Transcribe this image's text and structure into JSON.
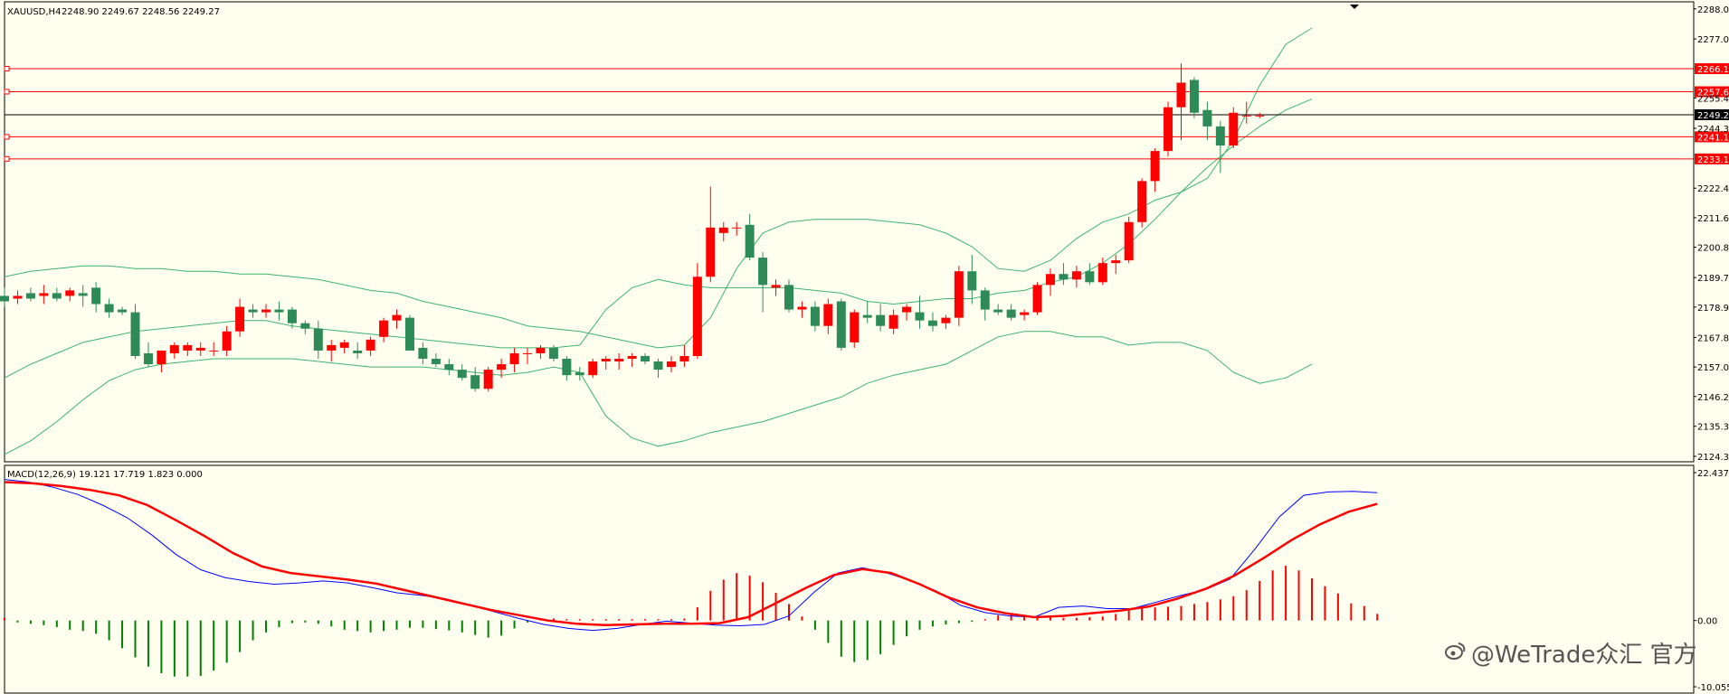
{
  "header": {
    "symbol": "XAUUSD,H4",
    "ohlc": "2248.90 2249.67 2248.56 2249.27"
  },
  "macd": {
    "label": "MACD(12,26,9) 19.121 17.719 1.823 0.000",
    "axis_ticks": [
      22.437,
      0.0,
      -10.055
    ]
  },
  "watermark": "@WeTrade众汇 官方",
  "colors": {
    "background": "#fffff0",
    "bull": "#2e8b57",
    "bear": "#ff0000",
    "bands": "#3cb371",
    "macd_line": "#0000ff",
    "signal_line": "#ff0000",
    "level_line": "#ff0000",
    "current_price": "#000000"
  },
  "chart_data": [
    {
      "type": "candlestick",
      "title": "XAUUSD,H4",
      "y_ticks": [
        2288.0,
        2277.0,
        2255.4,
        2244.3,
        2222.4,
        2211.6,
        2200.8,
        2189.7,
        2178.9,
        2167.8,
        2157.0,
        2146.2,
        2135.3,
        2124.3
      ],
      "ylim": [
        2124.3,
        2290
      ],
      "horizontal_levels": [
        {
          "value": 2266.13,
          "label": "2266.13"
        },
        {
          "value": 2257.69,
          "label": "2257.69"
        },
        {
          "value": 2241.19,
          "label": "2241.19"
        },
        {
          "value": 2233.11,
          "label": "2233.11"
        }
      ],
      "current_price": {
        "value": 2249.27,
        "label": "2249.27"
      },
      "candles": [
        [
          2183,
          2186,
          2179,
          2181
        ],
        [
          2182,
          2185,
          2180,
          2183
        ],
        [
          2184,
          2186,
          2181,
          2182
        ],
        [
          2183,
          2187,
          2180,
          2184
        ],
        [
          2184,
          2186,
          2181,
          2182
        ],
        [
          2183,
          2186,
          2181,
          2185
        ],
        [
          2184,
          2187,
          2179,
          2183
        ],
        [
          2186,
          2188,
          2177,
          2180
        ],
        [
          2180,
          2182,
          2175,
          2177
        ],
        [
          2178,
          2179,
          2176,
          2177
        ],
        [
          2177,
          2180,
          2160,
          2161
        ],
        [
          2162,
          2166,
          2157,
          2158
        ],
        [
          2158,
          2163,
          2155,
          2163
        ],
        [
          2162,
          2166,
          2160,
          2165
        ],
        [
          2163,
          2166,
          2161,
          2165
        ],
        [
          2163,
          2166,
          2161,
          2164
        ],
        [
          2163,
          2166,
          2161,
          2163
        ],
        [
          2163,
          2172,
          2161,
          2170
        ],
        [
          2170,
          2182,
          2168,
          2179
        ],
        [
          2178,
          2180,
          2175,
          2177
        ],
        [
          2177,
          2180,
          2175,
          2178
        ],
        [
          2178,
          2181,
          2174,
          2177
        ],
        [
          2178,
          2179,
          2171,
          2173
        ],
        [
          2173,
          2174,
          2169,
          2171
        ],
        [
          2171,
          2174,
          2160,
          2163
        ],
        [
          2163,
          2167,
          2159,
          2165
        ],
        [
          2164,
          2167,
          2162,
          2166
        ],
        [
          2163,
          2166,
          2160,
          2162
        ],
        [
          2163,
          2168,
          2161,
          2167
        ],
        [
          2168,
          2175,
          2166,
          2174
        ],
        [
          2174,
          2178,
          2171,
          2176
        ],
        [
          2175,
          2176,
          2163,
          2163
        ],
        [
          2164,
          2166,
          2158,
          2160
        ],
        [
          2160,
          2162,
          2157,
          2158
        ],
        [
          2158,
          2160,
          2154,
          2156
        ],
        [
          2156,
          2158,
          2152,
          2153
        ],
        [
          2154,
          2157,
          2148,
          2149
        ],
        [
          2149,
          2157,
          2148,
          2156
        ],
        [
          2156,
          2160,
          2153,
          2158
        ],
        [
          2158,
          2164,
          2155,
          2162
        ],
        [
          2162,
          2164,
          2158,
          2162
        ],
        [
          2162,
          2165,
          2160,
          2164
        ],
        [
          2164,
          2165,
          2159,
          2160
        ],
        [
          2160,
          2161,
          2152,
          2154
        ],
        [
          2155,
          2157,
          2152,
          2154
        ],
        [
          2154,
          2160,
          2153,
          2159
        ],
        [
          2159,
          2161,
          2156,
          2160
        ],
        [
          2159,
          2162,
          2156,
          2160
        ],
        [
          2160,
          2162,
          2157,
          2161
        ],
        [
          2161,
          2162,
          2158,
          2159
        ],
        [
          2159,
          2160,
          2153,
          2156
        ],
        [
          2157,
          2161,
          2155,
          2159
        ],
        [
          2159,
          2165,
          2157,
          2161
        ],
        [
          2161,
          2195,
          2160,
          2190
        ],
        [
          2190,
          2223,
          2188,
          2208
        ],
        [
          2206,
          2210,
          2203,
          2208
        ],
        [
          2208,
          2210,
          2205,
          2208
        ],
        [
          2209,
          2213,
          2196,
          2197
        ],
        [
          2197,
          2199,
          2177,
          2187
        ],
        [
          2186,
          2189,
          2183,
          2187
        ],
        [
          2187,
          2189,
          2177,
          2178
        ],
        [
          2178,
          2181,
          2175,
          2179
        ],
        [
          2179,
          2181,
          2170,
          2172
        ],
        [
          2172,
          2182,
          2169,
          2180
        ],
        [
          2181,
          2182,
          2163,
          2164
        ],
        [
          2166,
          2178,
          2164,
          2177
        ],
        [
          2176,
          2181,
          2173,
          2175
        ],
        [
          2176,
          2180,
          2170,
          2172
        ],
        [
          2171,
          2178,
          2169,
          2176
        ],
        [
          2177,
          2180,
          2174,
          2179
        ],
        [
          2177,
          2183,
          2171,
          2174
        ],
        [
          2174,
          2177,
          2170,
          2172
        ],
        [
          2173,
          2176,
          2171,
          2175
        ],
        [
          2175,
          2194,
          2172,
          2192
        ],
        [
          2192,
          2198,
          2180,
          2185
        ],
        [
          2185,
          2186,
          2174,
          2178
        ],
        [
          2178,
          2180,
          2176,
          2177
        ],
        [
          2178,
          2180,
          2174,
          2175
        ],
        [
          2176,
          2178,
          2174,
          2177
        ],
        [
          2177,
          2188,
          2176,
          2187
        ],
        [
          2187,
          2193,
          2183,
          2191
        ],
        [
          2191,
          2195,
          2187,
          2189
        ],
        [
          2189,
          2194,
          2186,
          2192
        ],
        [
          2192,
          2195,
          2187,
          2188
        ],
        [
          2188,
          2197,
          2187,
          2195
        ],
        [
          2195,
          2198,
          2191,
          2196
        ],
        [
          2196,
          2212,
          2195,
          2210
        ],
        [
          2210,
          2226,
          2208,
          2225
        ],
        [
          2225,
          2237,
          2221,
          2236
        ],
        [
          2236,
          2254,
          2234,
          2252
        ],
        [
          2252,
          2268,
          2240,
          2261
        ],
        [
          2262,
          2263,
          2248,
          2250
        ],
        [
          2251,
          2254,
          2240,
          2245
        ],
        [
          2245,
          2247,
          2228,
          2238
        ],
        [
          2238,
          2252,
          2237,
          2250
        ],
        [
          2249,
          2254,
          2246,
          2249
        ],
        [
          2249,
          2250,
          2248,
          2249
        ]
      ],
      "bollinger": {
        "upper": [
          2190,
          2192,
          2193,
          2194,
          2194,
          2193,
          2193,
          2192,
          2192,
          2191,
          2191,
          2190,
          2189,
          2187,
          2185,
          2184,
          2181,
          2179,
          2177,
          2175,
          2172,
          2171,
          2170,
          2168,
          2166,
          2164,
          2165,
          2175,
          2193,
          2206,
          2210,
          2211,
          2211,
          2211,
          2210,
          2209,
          2206,
          2201,
          2193,
          2192,
          2196,
          2204,
          2210,
          2213,
          2218,
          2221,
          2226,
          2240,
          2260,
          2275,
          2281
        ],
        "middle": [
          2153,
          2158,
          2162,
          2166,
          2168,
          2170,
          2171,
          2172,
          2173,
          2174,
          2174,
          2172,
          2171,
          2170,
          2169,
          2168,
          2167,
          2166,
          2165,
          2164,
          2164,
          2164,
          2165,
          2178,
          2186,
          2189,
          2187,
          2186,
          2186,
          2186,
          2186,
          2185,
          2184,
          2181,
          2180,
          2181,
          2182,
          2182,
          2184,
          2185,
          2188,
          2190,
          2195,
          2202,
          2211,
          2221,
          2230,
          2238,
          2245,
          2251,
          2255
        ],
        "lower": [
          2125,
          2130,
          2137,
          2145,
          2152,
          2156,
          2158,
          2159,
          2160,
          2160,
          2160,
          2160,
          2159,
          2158,
          2157,
          2157,
          2157,
          2156,
          2155,
          2154,
          2155,
          2157,
          2155,
          2139,
          2131,
          2128,
          2130,
          2133,
          2135,
          2137,
          2140,
          2143,
          2146,
          2151,
          2154,
          2156,
          2158,
          2163,
          2168,
          2170,
          2170,
          2168,
          2168,
          2165,
          2166,
          2166,
          2163,
          2155,
          2151,
          2153,
          2158
        ]
      }
    },
    {
      "type": "macd",
      "title": "MACD(12,26,9) 19.121 17.719 1.823 0.000",
      "ylim": [
        -10.055,
        22.437
      ],
      "params": [
        12,
        26,
        9
      ],
      "values": {
        "macd": 19.121,
        "signal": 17.719,
        "histogram": 1.823,
        "level": 0.0
      },
      "histogram": [
        0.4,
        -0.3,
        -0.5,
        -0.7,
        -1.0,
        -1.4,
        -1.6,
        -2.0,
        -3.0,
        -4.2,
        -5.6,
        -7.0,
        -8.0,
        -8.5,
        -8.5,
        -8.4,
        -7.6,
        -6.4,
        -4.8,
        -3.0,
        -1.8,
        -1.0,
        -0.4,
        -0.3,
        -0.5,
        -0.9,
        -1.4,
        -1.6,
        -1.8,
        -1.6,
        -1.4,
        -1.1,
        -1.1,
        -1.3,
        -1.5,
        -1.8,
        -2.2,
        -2.6,
        -2.3,
        -1.2,
        -0.3,
        0.2,
        0.3,
        0.2,
        0.2,
        0.2,
        0.2,
        0.2,
        0.2,
        0.2,
        0.2,
        0.2,
        0.3,
        2.0,
        4.5,
        6.2,
        7.2,
        6.8,
        5.8,
        4.2,
        2.5,
        0.6,
        -1.4,
        -3.4,
        -5.5,
        -6.3,
        -6.0,
        -5.1,
        -3.7,
        -2.4,
        -1.4,
        -0.9,
        -0.6,
        -0.4,
        -0.2,
        0.2,
        0.8,
        1.0,
        0.8,
        0.5,
        0.5,
        0.4,
        0.4,
        0.5,
        0.6,
        1.0,
        1.6,
        1.8,
        2.0,
        2.1,
        2.2,
        2.5,
        2.8,
        3.2,
        3.7,
        4.6,
        6.0,
        7.6,
        8.3,
        7.6,
        6.4,
        5.2,
        4.1,
        2.6,
        2.2,
        1.0
      ],
      "macd_line": [
        21.4,
        21.0,
        20.2,
        19.1,
        17.5,
        15.6,
        13.0,
        10.0,
        7.7,
        6.5,
        5.9,
        5.5,
        5.7,
        6.0,
        5.7,
        5.0,
        4.2,
        3.8,
        3.3,
        2.3,
        1.3,
        0.3,
        -0.6,
        -1.2,
        -1.5,
        -1.2,
        -0.6,
        -0.1,
        -0.4,
        -0.7,
        -0.8,
        -0.6,
        0.7,
        4.2,
        7.2,
        8.0,
        7.2,
        6.0,
        4.5,
        2.3,
        1.2,
        0.7,
        0.5,
        2.0,
        2.2,
        1.8,
        1.8,
        2.8,
        3.8,
        4.7,
        6.3,
        10.8,
        15.7,
        19.0,
        19.5,
        19.6,
        19.4
      ],
      "signal_line": [
        21.0,
        20.8,
        20.4,
        19.8,
        19.0,
        17.5,
        15.2,
        12.8,
        10.2,
        8.2,
        7.2,
        6.7,
        6.2,
        5.6,
        4.6,
        3.6,
        2.6,
        1.6,
        0.8,
        0.0,
        -0.5,
        -0.7,
        -0.6,
        -0.5,
        -0.5,
        -0.4,
        0.5,
        2.7,
        4.9,
        6.9,
        7.8,
        7.2,
        5.5,
        3.5,
        2.0,
        1.1,
        0.5,
        0.7,
        1.1,
        1.5,
        2.1,
        3.3,
        4.8,
        6.8,
        9.4,
        12.2,
        14.6,
        16.5,
        17.7
      ]
    }
  ]
}
